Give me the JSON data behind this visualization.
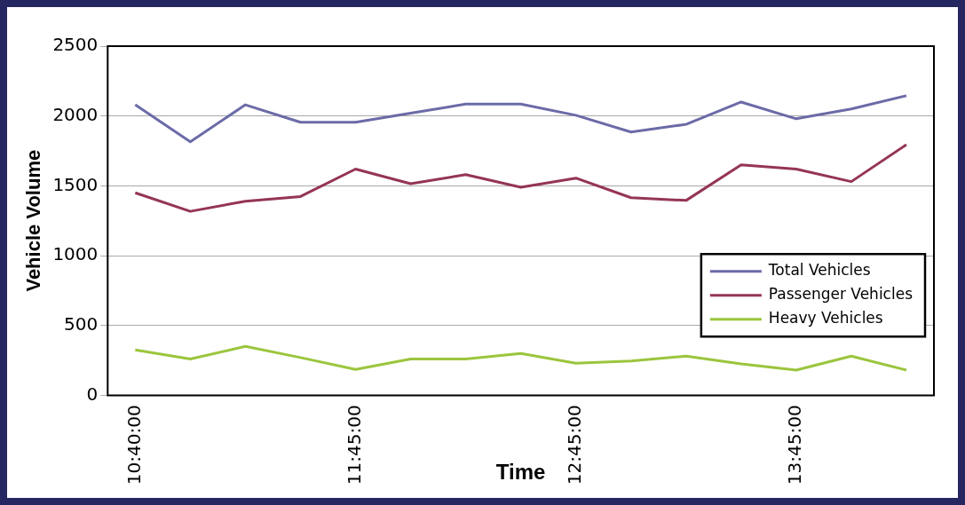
{
  "chart_data": {
    "type": "line",
    "xlabel": "Time",
    "ylabel": "Vehicle Volume",
    "categories": [
      "10:40:00",
      null,
      null,
      null,
      "11:45:00",
      null,
      null,
      null,
      "12:45:00",
      null,
      null,
      null,
      "13:45:00",
      null,
      null
    ],
    "series": [
      {
        "name": "Total Vehicles",
        "color": "#6b6ba8",
        "values": [
          2080,
          1815,
          2080,
          1955,
          1955,
          2020,
          2085,
          2085,
          2005,
          1885,
          1940,
          2100,
          1980,
          2050,
          2145
        ]
      },
      {
        "name": "Passenger Vehicles",
        "color": "#953553",
        "values": [
          1450,
          1317,
          1390,
          1423,
          1620,
          1515,
          1580,
          1490,
          1555,
          1415,
          1395,
          1650,
          1620,
          1530,
          1795
        ]
      },
      {
        "name": "Heavy Vehicles",
        "color": "#9bc53d",
        "values": [
          325,
          260,
          350,
          270,
          185,
          260,
          260,
          300,
          230,
          245,
          280,
          225,
          180,
          280,
          180
        ]
      }
    ],
    "ylim": [
      0,
      2500
    ],
    "yticks": [
      0,
      500,
      1000,
      1500,
      2000,
      2500
    ],
    "grid": "y",
    "legend": "bottom right",
    "marker": "none",
    "line_style": "solid"
  }
}
